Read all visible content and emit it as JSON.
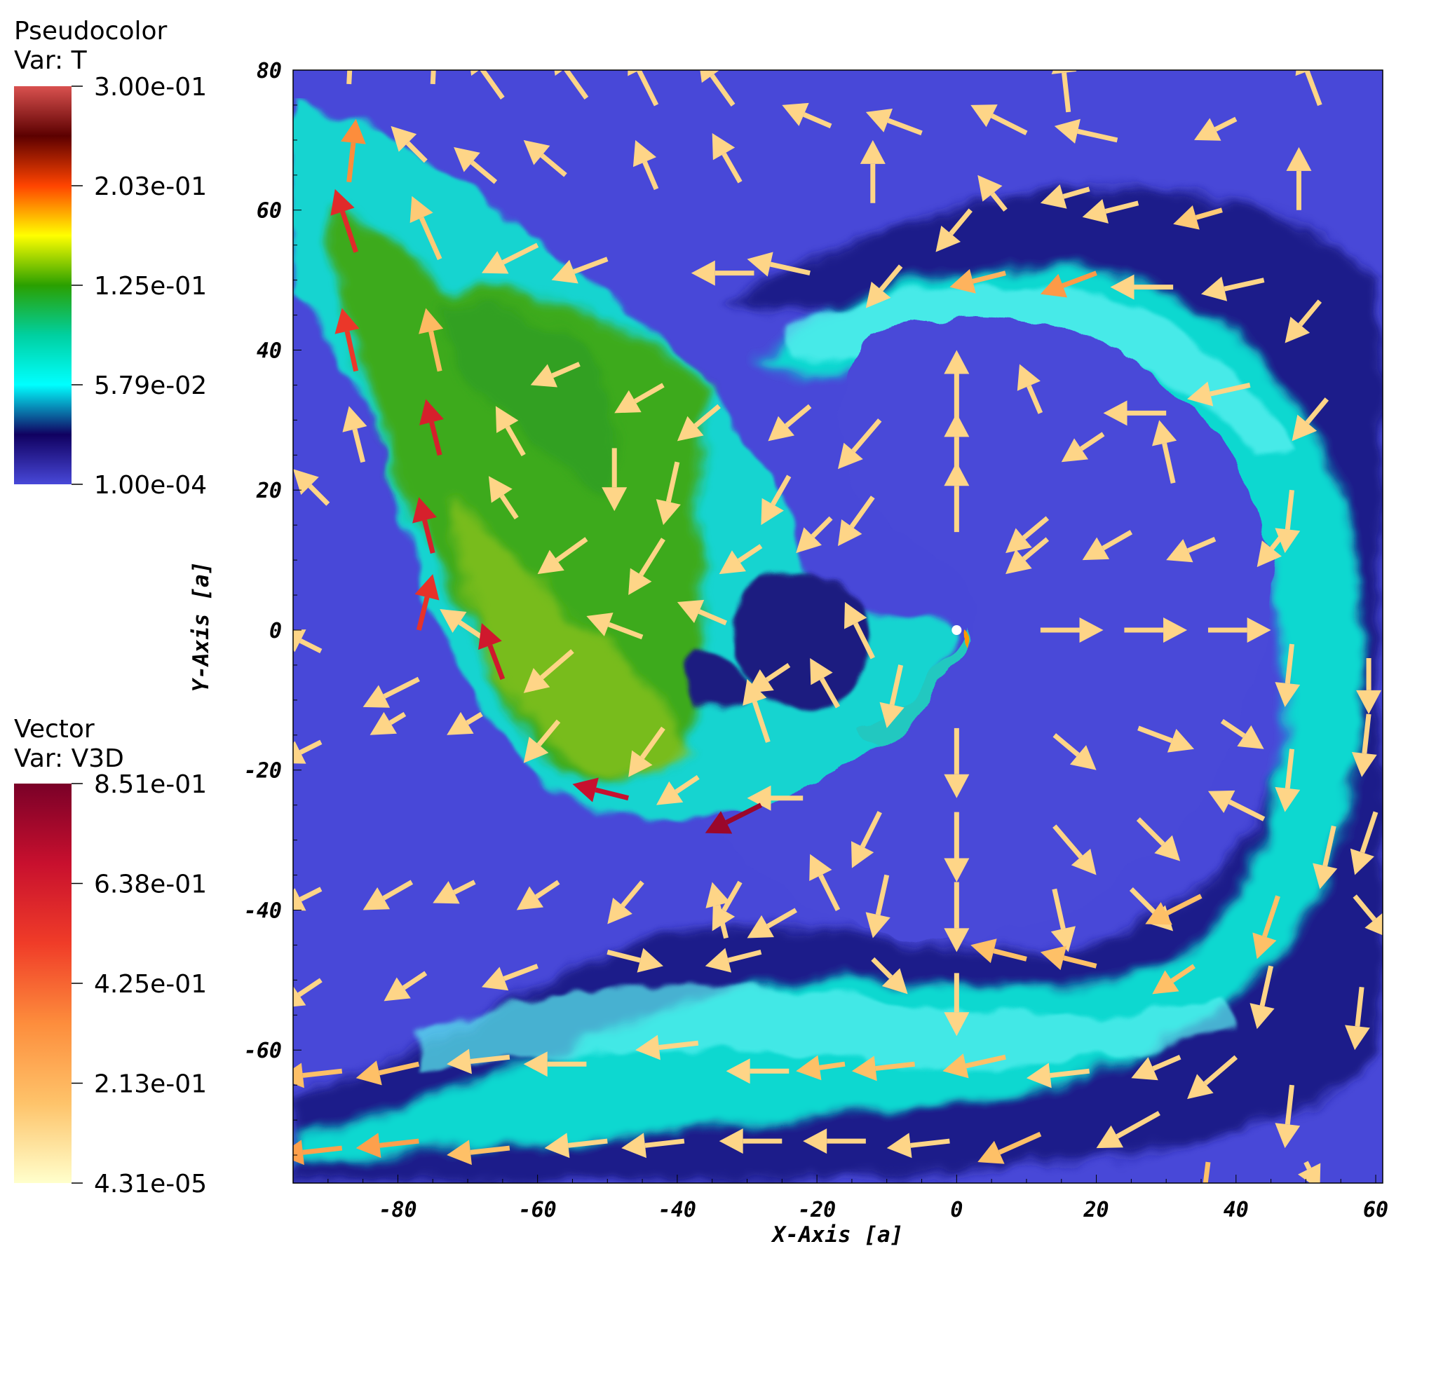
{
  "chart_data": {
    "type": "vector-field-pseudocolor",
    "xlabel": "X-Axis [a]",
    "ylabel": "Y-Axis [a]",
    "xlim": [
      -95,
      61
    ],
    "ylim": [
      -79,
      80
    ],
    "x_ticks": [
      "-80",
      "-60",
      "-40",
      "-20",
      "0",
      "20",
      "40",
      "60"
    ],
    "y_ticks": [
      "80",
      "60",
      "40",
      "20",
      "0",
      "-20",
      "-40",
      "-60"
    ],
    "pseudocolor": {
      "title": "Pseudocolor",
      "var": "Var: T",
      "range": [
        0.0001,
        0.3
      ],
      "ticks": [
        "3.00e-01",
        "2.03e-01",
        "1.25e-01",
        "5.79e-02",
        "1.00e-04"
      ],
      "colors": [
        "#d9514f",
        "#5c0000",
        "#ff4400",
        "#ffff00",
        "#2aa000",
        "#00d0a0",
        "#00ffff",
        "#100060",
        "#4848d8"
      ]
    },
    "vector": {
      "title": "Vector",
      "var": "Var: V3D",
      "range": [
        4.31e-05,
        0.851
      ],
      "ticks": [
        "8.51e-01",
        "6.38e-01",
        "4.25e-01",
        "2.13e-01",
        "4.31e-05"
      ],
      "colors": [
        "#7a0028",
        "#c8102e",
        "#f03c28",
        "#fd8d3c",
        "#fec36a",
        "#ffffcc"
      ]
    },
    "center_marker": [
      0,
      0
    ],
    "vectors": [
      [
        -87,
        78,
        0.5,
        9.5,
        0.12
      ],
      [
        -75,
        78,
        0.5,
        10,
        0.12
      ],
      [
        -65,
        76,
        -5,
        7,
        0.12
      ],
      [
        -53,
        76,
        -5,
        7,
        0.12
      ],
      [
        -43,
        75,
        -4,
        8,
        0.12
      ],
      [
        -32,
        75,
        -5,
        7,
        0.12
      ],
      [
        -18,
        72,
        -7,
        3,
        0.12
      ],
      [
        -5,
        71,
        -8,
        3,
        0.12
      ],
      [
        10,
        71,
        -8,
        4,
        0.12
      ],
      [
        16,
        74,
        -1,
        9,
        0.12
      ],
      [
        23,
        70,
        -9,
        2,
        0.12
      ],
      [
        40,
        73,
        -6,
        -3,
        0.12
      ],
      [
        52,
        75,
        -3,
        8,
        0.12
      ],
      [
        -87,
        64,
        1,
        9,
        0.34
      ],
      [
        -76,
        67,
        -5,
        5,
        0.12
      ],
      [
        -66,
        64,
        -6,
        5,
        0.12
      ],
      [
        -56,
        65,
        -6,
        5,
        0.12
      ],
      [
        -43,
        63,
        -3,
        7,
        0.12
      ],
      [
        -31,
        64,
        -4,
        7,
        0.12
      ],
      [
        -12,
        61,
        0,
        9,
        0.12
      ],
      [
        2,
        60,
        -5,
        -6,
        0.12
      ],
      [
        7,
        60,
        -4,
        5,
        0.12
      ],
      [
        19,
        63,
        -7,
        -2,
        0.12
      ],
      [
        26,
        61,
        -8,
        -2,
        0.12
      ],
      [
        38,
        60,
        -7,
        -2,
        0.15
      ],
      [
        49,
        60,
        0,
        9,
        0.12
      ],
      [
        -86,
        54,
        -3,
        9,
        0.58
      ],
      [
        -74,
        53,
        -4,
        9,
        0.15
      ],
      [
        -60,
        55,
        -8,
        -4,
        0.12
      ],
      [
        -50,
        53,
        -8,
        -3,
        0.12
      ],
      [
        -29,
        51,
        -9,
        0,
        0.12
      ],
      [
        -21,
        51,
        -9,
        2,
        0.12
      ],
      [
        -8,
        52,
        -5,
        -6,
        0.12
      ],
      [
        7,
        51,
        -8,
        -2,
        0.22
      ],
      [
        20,
        51,
        -8,
        -3,
        0.3
      ],
      [
        31,
        49,
        -9,
        0,
        0.12
      ],
      [
        44,
        50,
        -9,
        -2,
        0.12
      ],
      [
        52,
        47,
        -5,
        -6,
        0.12
      ],
      [
        -86,
        37,
        -2,
        9,
        0.53
      ],
      [
        -74,
        37,
        -2,
        9,
        0.2
      ],
      [
        -54,
        38,
        -7,
        -3,
        0.12
      ],
      [
        -42,
        35,
        -7,
        -4,
        0.12
      ],
      [
        -34,
        32,
        -6,
        -5,
        0.12
      ],
      [
        -21,
        32,
        -6,
        -5,
        0.12
      ],
      [
        -11,
        30,
        -6,
        -7,
        0.12
      ],
      [
        0,
        30,
        0,
        10,
        0.12
      ],
      [
        12,
        31,
        -3,
        7,
        0.12
      ],
      [
        21,
        28,
        -6,
        -4,
        0.12
      ],
      [
        30,
        31,
        -9,
        0,
        0.12
      ],
      [
        42,
        35,
        -9,
        -2,
        0.12
      ],
      [
        53,
        33,
        -5,
        -6,
        0.12
      ],
      [
        -85,
        24,
        -2,
        8,
        0.12
      ],
      [
        -74,
        25,
        -2,
        8,
        0.62
      ],
      [
        -62,
        25,
        -4,
        7,
        0.12
      ],
      [
        -49,
        26,
        0,
        -9,
        0.12
      ],
      [
        -40,
        24,
        -2,
        -9,
        0.12
      ],
      [
        -24,
        22,
        -4,
        -7,
        0.12
      ],
      [
        -12,
        19,
        -5,
        -7,
        0.12
      ],
      [
        0,
        21,
        0,
        10,
        0.12
      ],
      [
        13,
        16,
        -6,
        -5,
        0.12
      ],
      [
        31,
        21,
        -2,
        9,
        0.12
      ],
      [
        48,
        20,
        -1,
        -9,
        0.12
      ],
      [
        -90,
        18,
        -5,
        5,
        0.12
      ],
      [
        -75,
        11,
        -2,
        8,
        0.62
      ],
      [
        -63,
        16,
        -4,
        6,
        0.12
      ],
      [
        -53,
        13,
        -7,
        -5,
        0.12
      ],
      [
        -42,
        13,
        -5,
        -8,
        0.12
      ],
      [
        -28,
        12,
        -6,
        -4,
        0.12
      ],
      [
        -18,
        16,
        -5,
        -5,
        0.12
      ],
      [
        0,
        14,
        0,
        10,
        0.12
      ],
      [
        13,
        13,
        -6,
        -5,
        0.12
      ],
      [
        25,
        14,
        -7,
        -4,
        0.12
      ],
      [
        37,
        13,
        -7,
        -3,
        0.12
      ],
      [
        47,
        14,
        -4,
        -5,
        0.12
      ],
      [
        -91,
        -3,
        -6,
        3,
        0.12
      ],
      [
        -77,
        0,
        2,
        8,
        0.55
      ],
      [
        -68,
        -1,
        -6,
        4,
        0.12
      ],
      [
        -55,
        -3,
        -7,
        -6,
        0.12
      ],
      [
        -45,
        -1,
        -8,
        3,
        0.12
      ],
      [
        -33,
        1,
        -7,
        3,
        0.12
      ],
      [
        -24,
        -5,
        -6,
        -4,
        0.12
      ],
      [
        -12,
        -4,
        -4,
        8,
        0.12
      ],
      [
        12,
        0,
        9,
        0,
        0.12
      ],
      [
        24,
        0,
        9,
        0,
        0.12
      ],
      [
        36,
        0,
        9,
        0,
        0.12
      ],
      [
        48,
        -2,
        -1,
        -9,
        0.12
      ],
      [
        59,
        -4,
        0,
        -8,
        0.12
      ],
      [
        -77,
        -7,
        -8,
        -4,
        0.12
      ],
      [
        -65,
        -7,
        -3,
        8,
        0.65
      ],
      [
        -57,
        -13,
        -5,
        -6,
        0.12
      ],
      [
        -42,
        -14,
        -5,
        -7,
        0.12
      ],
      [
        -27,
        -16,
        -3,
        9,
        0.12
      ],
      [
        -17,
        -11,
        -4,
        7,
        0.12
      ],
      [
        -8,
        -5,
        -2,
        -9,
        0.12
      ],
      [
        0,
        -14,
        0,
        -10,
        0.12
      ],
      [
        14,
        -15,
        6,
        -5,
        0.12
      ],
      [
        26,
        -14,
        8,
        -3,
        0.12
      ],
      [
        38,
        -13,
        6,
        -4,
        0.12
      ],
      [
        48,
        -17,
        -1,
        -9,
        0.12
      ],
      [
        59,
        -12,
        -1,
        -9,
        0.12
      ],
      [
        -91,
        -16,
        -6,
        -3,
        0.12
      ],
      [
        -79,
        -12,
        -5,
        -3,
        0.12
      ],
      [
        -68,
        -12,
        -5,
        -3,
        0.12
      ],
      [
        -47,
        -24,
        -8,
        2,
        0.68
      ],
      [
        -37,
        -21,
        -6,
        -4,
        0.12
      ],
      [
        -22,
        -24,
        -8,
        0,
        0.12
      ],
      [
        -28,
        -25,
        -8,
        -4,
        0.78
      ],
      [
        -11,
        -26,
        -4,
        -8,
        0.12
      ],
      [
        0,
        -26,
        0,
        -10,
        0.12
      ],
      [
        14,
        -28,
        6,
        -7,
        0.12
      ],
      [
        26,
        -27,
        6,
        -6,
        0.12
      ],
      [
        44,
        -27,
        -8,
        4,
        0.12
      ],
      [
        54,
        -28,
        -2,
        -9,
        0.12
      ],
      [
        60,
        -26,
        -3,
        -9,
        0.12
      ],
      [
        -91,
        -37,
        -6,
        -3,
        0.12
      ],
      [
        -78,
        -36,
        -7,
        -4,
        0.12
      ],
      [
        -69,
        -36,
        -6,
        -3,
        0.12
      ],
      [
        -57,
        -36,
        -6,
        -4,
        0.12
      ],
      [
        -45,
        -36,
        -5,
        -6,
        0.12
      ],
      [
        -31,
        -36,
        -4,
        -7,
        0.12
      ],
      [
        -23,
        -40,
        -7,
        -4,
        0.12
      ],
      [
        -17,
        -40,
        -4,
        8,
        0.12
      ],
      [
        -10,
        -35,
        -2,
        -9,
        0.12
      ],
      [
        0,
        -36,
        0,
        -10,
        0.12
      ],
      [
        14,
        -37,
        2,
        -9,
        0.12
      ],
      [
        25,
        -37,
        6,
        -6,
        0.12
      ],
      [
        35,
        -38,
        -8,
        -4,
        0.18
      ],
      [
        46,
        -38,
        -3,
        -9,
        0.18
      ],
      [
        57,
        -38,
        5,
        -6,
        0.12
      ],
      [
        -91,
        -50,
        -6,
        -4,
        0.12
      ],
      [
        -76,
        -49,
        -6,
        -4,
        0.12
      ],
      [
        -60,
        -48,
        -8,
        -3,
        0.12
      ],
      [
        -50,
        -46,
        8,
        -2,
        0.12
      ],
      [
        -33,
        -44,
        -2,
        8,
        0.12
      ],
      [
        -28,
        -46,
        -8,
        -2,
        0.12
      ],
      [
        -12,
        -47,
        5,
        -5,
        0.12
      ],
      [
        0,
        -49,
        0,
        -9,
        0.12
      ],
      [
        10,
        -47,
        -8,
        2,
        0.18
      ],
      [
        20,
        -48,
        -8,
        2,
        0.18
      ],
      [
        34,
        -48,
        -6,
        -4,
        0.18
      ],
      [
        45,
        -48,
        -2,
        -9,
        0.12
      ],
      [
        58,
        -51,
        -1,
        -9,
        0.12
      ],
      [
        -88,
        -63,
        -9,
        -1,
        0.18
      ],
      [
        -77,
        -62,
        -9,
        -2,
        0.18
      ],
      [
        -64,
        -61,
        -9,
        -1,
        0.12
      ],
      [
        -53,
        -62,
        -9,
        0,
        0.12
      ],
      [
        -37,
        -59,
        -9,
        -1,
        0.12
      ],
      [
        -24,
        -63,
        -9,
        0,
        0.12
      ],
      [
        -16,
        -62,
        -7,
        -1,
        0.18
      ],
      [
        -6,
        -62,
        -9,
        -1,
        0.18
      ],
      [
        7,
        -61,
        -9,
        -2,
        0.18
      ],
      [
        19,
        -63,
        -9,
        -1,
        0.12
      ],
      [
        32,
        -61,
        -7,
        -3,
        0.12
      ],
      [
        40,
        -61,
        -7,
        -6,
        0.12
      ],
      [
        48,
        -65,
        -1,
        -9,
        0.12
      ],
      [
        -88,
        -74,
        -9,
        -1,
        0.28
      ],
      [
        -77,
        -73,
        -9,
        -1,
        0.28
      ],
      [
        -64,
        -74,
        -9,
        -1,
        0.18
      ],
      [
        -50,
        -73,
        -9,
        -1,
        0.12
      ],
      [
        -39,
        -73,
        -9,
        -1,
        0.12
      ],
      [
        -25,
        -73,
        -9,
        0,
        0.12
      ],
      [
        -13,
        -73,
        -9,
        0,
        0.12
      ],
      [
        -1,
        -73,
        -9,
        -1,
        0.12
      ],
      [
        12,
        -72,
        -9,
        -4,
        0.18
      ],
      [
        29,
        -69,
        -9,
        -5,
        0.12
      ],
      [
        36,
        -76,
        -1,
        -8,
        0.18
      ],
      [
        50,
        -76,
        2,
        -4,
        0.12
      ]
    ]
  }
}
